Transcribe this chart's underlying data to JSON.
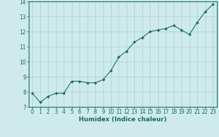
{
  "title": "",
  "xlabel": "Humidex (Indice chaleur)",
  "ylabel": "",
  "x": [
    0,
    1,
    2,
    3,
    4,
    5,
    6,
    7,
    8,
    9,
    10,
    11,
    12,
    13,
    14,
    15,
    16,
    17,
    18,
    19,
    20,
    21,
    22,
    23
  ],
  "y": [
    7.9,
    7.3,
    7.7,
    7.9,
    7.9,
    8.7,
    8.7,
    8.6,
    8.6,
    8.8,
    9.4,
    10.3,
    10.7,
    11.3,
    11.6,
    12.0,
    12.1,
    12.2,
    12.4,
    12.1,
    11.8,
    12.6,
    13.3,
    13.8
  ],
  "line_color": "#1a6b5a",
  "marker": "D",
  "marker_size": 2.0,
  "bg_color": "#ceeaea",
  "grid_color": "#aacfcf",
  "axis_color": "#1a6b5a",
  "tick_color": "#1a6b5a",
  "label_color": "#1a6b5a",
  "ylim": [
    7,
    14
  ],
  "xlim": [
    -0.5,
    23.5
  ],
  "yticks": [
    7,
    8,
    9,
    10,
    11,
    12,
    13,
    14
  ],
  "xticks": [
    0,
    1,
    2,
    3,
    4,
    5,
    6,
    7,
    8,
    9,
    10,
    11,
    12,
    13,
    14,
    15,
    16,
    17,
    18,
    19,
    20,
    21,
    22,
    23
  ],
  "xlabel_fontsize": 6.5,
  "tick_fontsize": 5.5
}
